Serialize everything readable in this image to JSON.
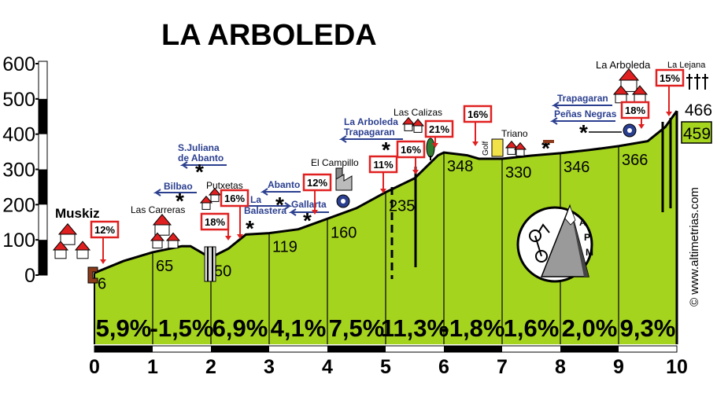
{
  "chart_data": {
    "type": "area",
    "title": "LA ARBOLEDA",
    "xlabel": "",
    "ylabel": "",
    "xlim": [
      0,
      10
    ],
    "ylim": [
      0,
      600
    ],
    "x_ticks": [
      "0",
      "1",
      "2",
      "3",
      "4",
      "5",
      "6",
      "7",
      "8",
      "9",
      "10"
    ],
    "y_ticks": [
      "0",
      "100",
      "200",
      "300",
      "400",
      "500",
      "600"
    ],
    "profile": {
      "x": [
        0,
        0.5,
        1.0,
        1.5,
        1.65,
        1.9,
        2.0,
        2.3,
        2.6,
        3.0,
        3.5,
        4.0,
        4.5,
        5.0,
        5.5,
        5.9,
        6.0,
        6.4,
        6.6,
        7.0,
        7.5,
        8.0,
        8.5,
        9.0,
        9.5,
        9.8,
        10.0
      ],
      "y": [
        6,
        40,
        65,
        82,
        82,
        58,
        50,
        75,
        115,
        119,
        130,
        160,
        190,
        235,
        275,
        340,
        348,
        340,
        330,
        330,
        339,
        346,
        355,
        366,
        380,
        420,
        466
      ]
    },
    "segments": [
      {
        "grade": "5,9%",
        "start_alt": "6"
      },
      {
        "grade": "-1,5%",
        "start_alt": "65"
      },
      {
        "grade": "6,9%",
        "start_alt": "50"
      },
      {
        "grade": "4,1%",
        "start_alt": "119"
      },
      {
        "grade": "7,5%",
        "start_alt": "160"
      },
      {
        "grade": "11,3%",
        "start_alt": "235"
      },
      {
        "grade": "-1,8%",
        "start_alt": "348"
      },
      {
        "grade": "1,6%",
        "start_alt": "330"
      },
      {
        "grade": "2,0%",
        "start_alt": "346"
      },
      {
        "grade": "9,3%",
        "start_alt": "366"
      }
    ],
    "end_altitudes": [
      "466",
      "459"
    ],
    "max_gradients": [
      {
        "label": "12%",
        "x": 0.15
      },
      {
        "label": "18%",
        "x": 2.35
      },
      {
        "label": "16%",
        "x": 2.55
      },
      {
        "label": "12%",
        "x": 4.05
      },
      {
        "label": "11%",
        "x": 5.05
      },
      {
        "label": "16%",
        "x": 5.5
      },
      {
        "label": "21%",
        "x": 5.9
      },
      {
        "label": "16%",
        "x": 6.6
      },
      {
        "label": "18%",
        "x": 9.4
      },
      {
        "label": "15%",
        "x": 9.8
      }
    ],
    "places": [
      "Muskiz",
      "Las Carreras",
      "Putxetas",
      "El Campillo",
      "Gallarta",
      "Las Calizas",
      "Triano",
      "La Arboleda",
      "La Lejana"
    ],
    "road_signs": [
      "S.Juliana de Abanto",
      "Bilbao",
      "La Balastera",
      "Abanto",
      "La Arboleda Trapagaran",
      "Trapagaran",
      "Peñas Negras"
    ],
    "golf_label": "Golf",
    "logo_text": [
      "A",
      "P",
      "M"
    ],
    "credit": "© www.altimetrias.com"
  },
  "colors": {
    "fill": "#a5d41f",
    "outline": "#000000",
    "grade_box": "#e02020",
    "road_sign": "#2b3f8f",
    "house_roof": "#e02020"
  }
}
